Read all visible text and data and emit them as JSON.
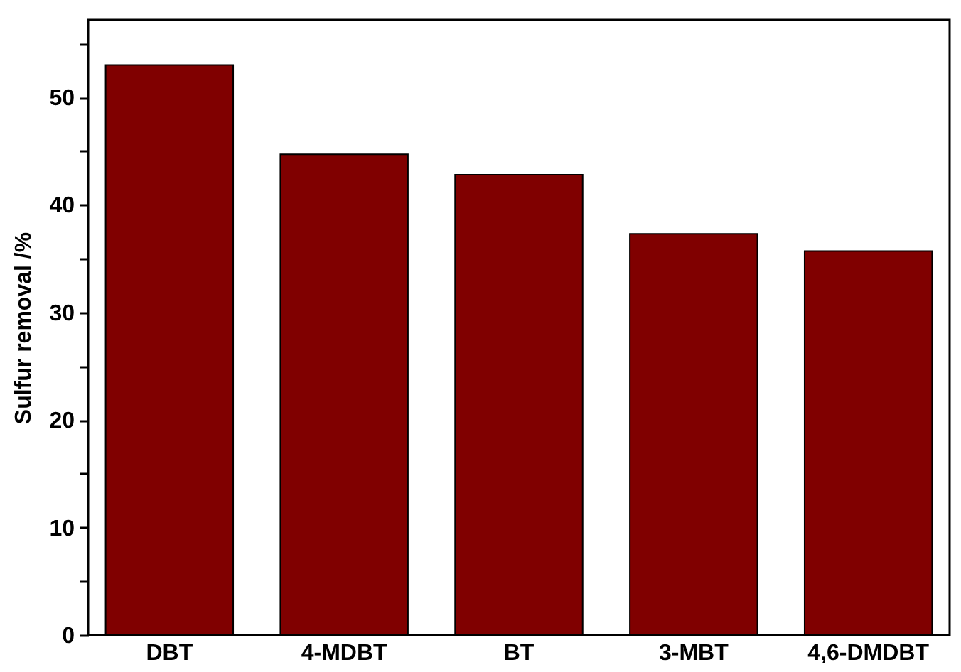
{
  "chart_data": {
    "type": "bar",
    "ylabel": "Sulfur removal /%",
    "categories": [
      "DBT",
      "4-MDBT",
      "BT",
      "3-MBT",
      "4,6-DMDBT"
    ],
    "values": [
      53,
      44.7,
      42.8,
      37.3,
      35.7
    ],
    "color": "#800000",
    "ylim": [
      0,
      57.2
    ],
    "yticks": [
      0,
      {
        "value": 5,
        "label": null
      },
      10,
      {
        "value": 15,
        "label": null
      },
      20,
      {
        "value": 25,
        "label": null
      },
      30,
      {
        "value": 35,
        "label": null
      },
      40,
      {
        "value": 45,
        "label": null
      },
      50,
      {
        "value": 55,
        "label": null
      }
    ],
    "grid": false
  }
}
